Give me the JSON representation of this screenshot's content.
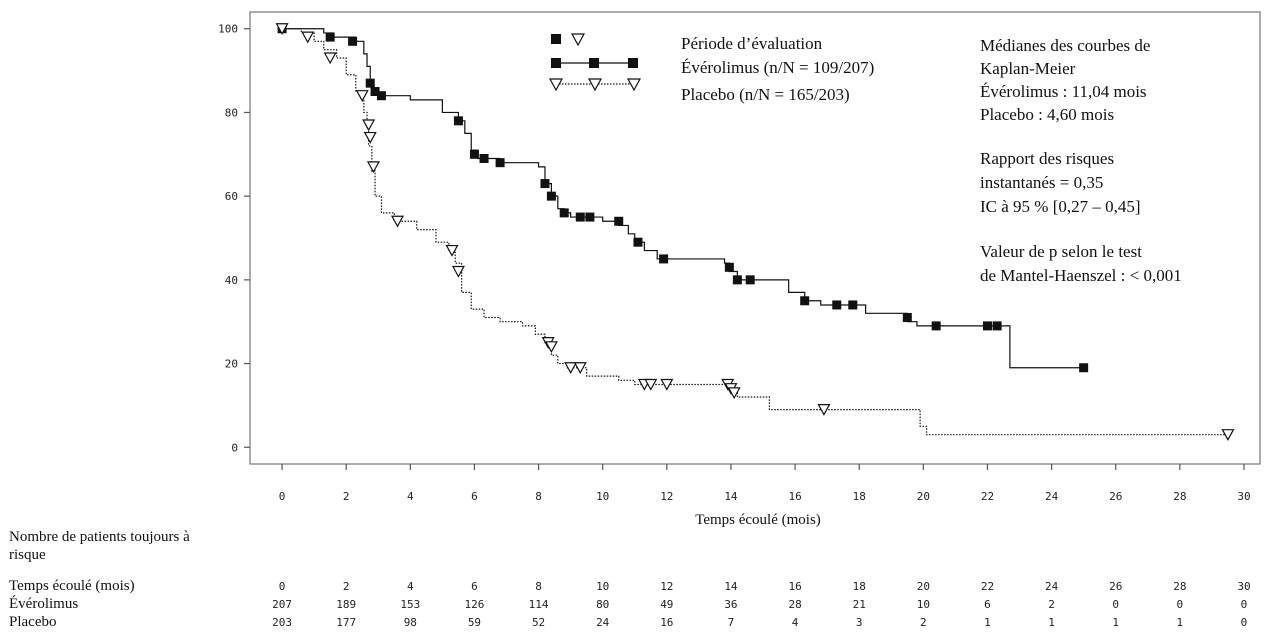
{
  "chart_data": {
    "type": "line",
    "subtype": "kaplan-meier",
    "xlabel": "Temps écoulé (mois)",
    "ylabel": "",
    "xlim": [
      -1,
      30.5
    ],
    "ylim": [
      -4,
      104
    ],
    "x_ticks": [
      0,
      2,
      4,
      6,
      8,
      10,
      12,
      14,
      16,
      18,
      20,
      22,
      24,
      26,
      28,
      30
    ],
    "y_ticks": [
      0,
      20,
      40,
      60,
      80,
      100
    ],
    "grid": false,
    "legend": {
      "placement": "top-center",
      "header": "Période d’évaluation",
      "entries": [
        {
          "label": "Évérolimus (n/N = 109/207)",
          "marker": "square",
          "line": "solid"
        },
        {
          "label": "Placebo (n/N = 165/203)",
          "marker": "triangle-down",
          "line": "dotted"
        }
      ]
    },
    "annotations": [
      {
        "lines": [
          "Médianes des courbes de",
          "Kaplan-Meier",
          "Évérolimus : 11,04 mois",
          "Placebo : 4,60 mois"
        ]
      },
      {
        "lines": [
          "Rapport des risques",
          "instantanés = 0,35",
          "IC à 95 % [0,27 – 0,45]"
        ]
      },
      {
        "lines": [
          "Valeur de p selon le test",
          "de Mantel-Haenszel : < 0,001"
        ]
      }
    ],
    "series": [
      {
        "name": "Évérolimus (n/N = 109/207)",
        "line": "solid",
        "marker": "square",
        "steps": [
          [
            0,
            100
          ],
          [
            1.3,
            99
          ],
          [
            1.6,
            98
          ],
          [
            2.3,
            97
          ],
          [
            2.55,
            94
          ],
          [
            2.65,
            91
          ],
          [
            2.75,
            87
          ],
          [
            2.85,
            85
          ],
          [
            3.0,
            84
          ],
          [
            4.0,
            83
          ],
          [
            5.0,
            80
          ],
          [
            5.5,
            78
          ],
          [
            5.7,
            75
          ],
          [
            5.9,
            71
          ],
          [
            6.1,
            69
          ],
          [
            6.8,
            68
          ],
          [
            8.0,
            67
          ],
          [
            8.2,
            63
          ],
          [
            8.4,
            60
          ],
          [
            8.6,
            57
          ],
          [
            8.8,
            56
          ],
          [
            9.0,
            55
          ],
          [
            10.0,
            54
          ],
          [
            10.5,
            53
          ],
          [
            10.8,
            51
          ],
          [
            11.0,
            49
          ],
          [
            11.3,
            47
          ],
          [
            11.7,
            45
          ],
          [
            13.8,
            44
          ],
          [
            13.95,
            42
          ],
          [
            14.2,
            40
          ],
          [
            15.8,
            37
          ],
          [
            16.3,
            35
          ],
          [
            16.8,
            34
          ],
          [
            18.2,
            32
          ],
          [
            19.5,
            30
          ],
          [
            19.8,
            29
          ],
          [
            20.2,
            29
          ],
          [
            22.7,
            19
          ],
          [
            25.0,
            19
          ]
        ],
        "censored": [
          [
            0,
            100
          ],
          [
            1.5,
            98
          ],
          [
            2.2,
            97
          ],
          [
            2.75,
            87
          ],
          [
            2.9,
            85
          ],
          [
            3.1,
            84
          ],
          [
            5.5,
            78
          ],
          [
            6.0,
            70
          ],
          [
            6.3,
            69
          ],
          [
            6.8,
            68
          ],
          [
            8.2,
            63
          ],
          [
            8.4,
            60
          ],
          [
            8.8,
            56
          ],
          [
            9.3,
            55
          ],
          [
            9.6,
            55
          ],
          [
            10.5,
            54
          ],
          [
            11.1,
            49
          ],
          [
            11.9,
            45
          ],
          [
            13.95,
            43
          ],
          [
            14.2,
            40
          ],
          [
            14.6,
            40
          ],
          [
            16.3,
            35
          ],
          [
            17.3,
            34
          ],
          [
            17.8,
            34
          ],
          [
            19.5,
            31
          ],
          [
            20.4,
            29
          ],
          [
            22.0,
            29
          ],
          [
            22.3,
            29
          ],
          [
            25.0,
            19
          ]
        ]
      },
      {
        "name": "Placebo (n/N = 165/203)",
        "line": "dotted",
        "marker": "triangle-down",
        "steps": [
          [
            0,
            100
          ],
          [
            0.6,
            99
          ],
          [
            1.0,
            97
          ],
          [
            1.3,
            95
          ],
          [
            1.7,
            93
          ],
          [
            2.0,
            89
          ],
          [
            2.3,
            85
          ],
          [
            2.55,
            80
          ],
          [
            2.65,
            76
          ],
          [
            2.7,
            72
          ],
          [
            2.8,
            66
          ],
          [
            2.9,
            60
          ],
          [
            3.1,
            56
          ],
          [
            3.5,
            54
          ],
          [
            4.2,
            52
          ],
          [
            4.8,
            49
          ],
          [
            5.2,
            47
          ],
          [
            5.4,
            44
          ],
          [
            5.6,
            37
          ],
          [
            5.9,
            33
          ],
          [
            6.3,
            31
          ],
          [
            6.8,
            30
          ],
          [
            7.5,
            29
          ],
          [
            7.9,
            27
          ],
          [
            8.2,
            25
          ],
          [
            8.4,
            22
          ],
          [
            8.6,
            20
          ],
          [
            8.9,
            19
          ],
          [
            9.5,
            17
          ],
          [
            10.5,
            16
          ],
          [
            11.0,
            15
          ],
          [
            12.0,
            15
          ],
          [
            13.9,
            14
          ],
          [
            14.2,
            12
          ],
          [
            14.8,
            12
          ],
          [
            15.2,
            9
          ],
          [
            16.5,
            9
          ],
          [
            19.9,
            5
          ],
          [
            20.1,
            3
          ],
          [
            29.5,
            3
          ]
        ],
        "censored": [
          [
            0,
            100
          ],
          [
            0.8,
            98
          ],
          [
            1.5,
            93
          ],
          [
            2.5,
            84
          ],
          [
            2.7,
            77
          ],
          [
            2.75,
            74
          ],
          [
            2.85,
            67
          ],
          [
            3.6,
            54
          ],
          [
            5.3,
            47
          ],
          [
            5.5,
            42
          ],
          [
            8.3,
            25
          ],
          [
            8.4,
            24
          ],
          [
            9.0,
            19
          ],
          [
            9.3,
            19
          ],
          [
            11.3,
            15
          ],
          [
            11.5,
            15
          ],
          [
            12.0,
            15
          ],
          [
            13.9,
            15
          ],
          [
            14.0,
            14
          ],
          [
            14.1,
            13
          ],
          [
            16.9,
            9
          ],
          [
            29.5,
            3
          ]
        ]
      }
    ],
    "risk_table": {
      "title": "Nombre de patients toujours à risque",
      "time_label": "Temps écoulé (mois)",
      "times": [
        "0",
        "2",
        "4",
        "6",
        "8",
        "10",
        "12",
        "14",
        "16",
        "18",
        "20",
        "22",
        "24",
        "26",
        "28",
        "30"
      ],
      "rows": [
        {
          "label": "Évérolimus",
          "values": [
            "207",
            "189",
            "153",
            "126",
            "114",
            "80",
            "49",
            "36",
            "28",
            "21",
            "10",
            "6",
            "2",
            "0",
            "0",
            "0"
          ]
        },
        {
          "label": "Placebo",
          "values": [
            "203",
            "177",
            "98",
            "59",
            "52",
            "24",
            "16",
            "7",
            "4",
            "3",
            "2",
            "1",
            "1",
            "1",
            "1",
            "0"
          ]
        }
      ]
    }
  }
}
